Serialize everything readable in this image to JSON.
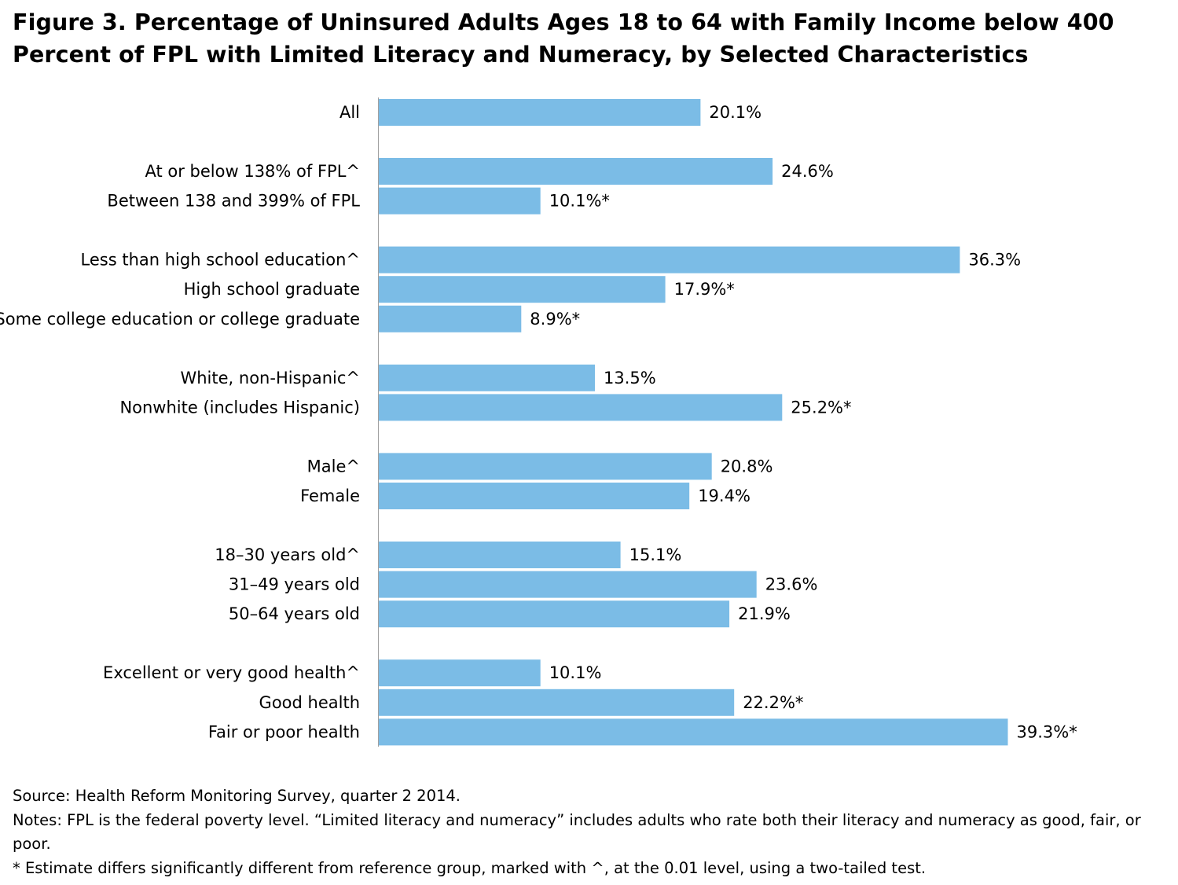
{
  "title": "Figure 3. Percentage of Uninsured Adults Ages 18 to 64 with Family Income below 400 Percent of FPL with Limited Literacy and Numeracy,  by Selected Characteristics",
  "chart_data": {
    "type": "bar",
    "orientation": "horizontal",
    "title": "Figure 3. Percentage of Uninsured Adults Ages 18 to 64 with Family Income below 400 Percent of FPL with Limited Literacy and Numeracy,  by Selected Characteristics",
    "xlabel": "",
    "ylabel": "",
    "unit": "%",
    "xlim": [
      0,
      40
    ],
    "grid": false,
    "bar_color": "#7bbce6",
    "groups": [
      {
        "categories": [
          {
            "label": "All",
            "value": 20.1,
            "value_label": "20.1%"
          }
        ]
      },
      {
        "categories": [
          {
            "label": "At or below 138% of FPL^",
            "value": 24.6,
            "value_label": "24.6%"
          },
          {
            "label": "Between 138 and 399% of FPL",
            "value": 10.1,
            "value_label": "10.1%*"
          }
        ]
      },
      {
        "categories": [
          {
            "label": "Less than high school education^",
            "value": 36.3,
            "value_label": "36.3%"
          },
          {
            "label": "High school graduate",
            "value": 17.9,
            "value_label": "17.9%*"
          },
          {
            "label": "Some college education or college graduate",
            "value": 8.9,
            "value_label": "8.9%*"
          }
        ]
      },
      {
        "categories": [
          {
            "label": "White, non-Hispanic^",
            "value": 13.5,
            "value_label": "13.5%"
          },
          {
            "label": "Nonwhite (includes Hispanic)",
            "value": 25.2,
            "value_label": "25.2%*"
          }
        ]
      },
      {
        "categories": [
          {
            "label": "Male^",
            "value": 20.8,
            "value_label": "20.8%"
          },
          {
            "label": "Female",
            "value": 19.4,
            "value_label": "19.4%"
          }
        ]
      },
      {
        "categories": [
          {
            "label": "18–30 years old^",
            "value": 15.1,
            "value_label": "15.1%"
          },
          {
            "label": "31–49 years old",
            "value": 23.6,
            "value_label": "23.6%"
          },
          {
            "label": "50–64 years old",
            "value": 21.9,
            "value_label": "21.9%"
          }
        ]
      },
      {
        "categories": [
          {
            "label": "Excellent or very good health^",
            "value": 10.1,
            "value_label": "10.1%"
          },
          {
            "label": "Good health",
            "value": 22.2,
            "value_label": "22.2%*"
          },
          {
            "label": "Fair or poor health",
            "value": 39.3,
            "value_label": "39.3%*"
          }
        ]
      }
    ]
  },
  "footer": {
    "source": "Source: Health Reform Monitoring Survey, quarter 2 2014.",
    "notes": "Notes: FPL is the federal poverty level. “Limited literacy and numeracy” includes adults who rate both their literacy and numeracy as good, fair, or poor.",
    "significance": "* Estimate differs significantly different from reference group, marked with ^, at the 0.01 level, using a two-tailed test."
  }
}
